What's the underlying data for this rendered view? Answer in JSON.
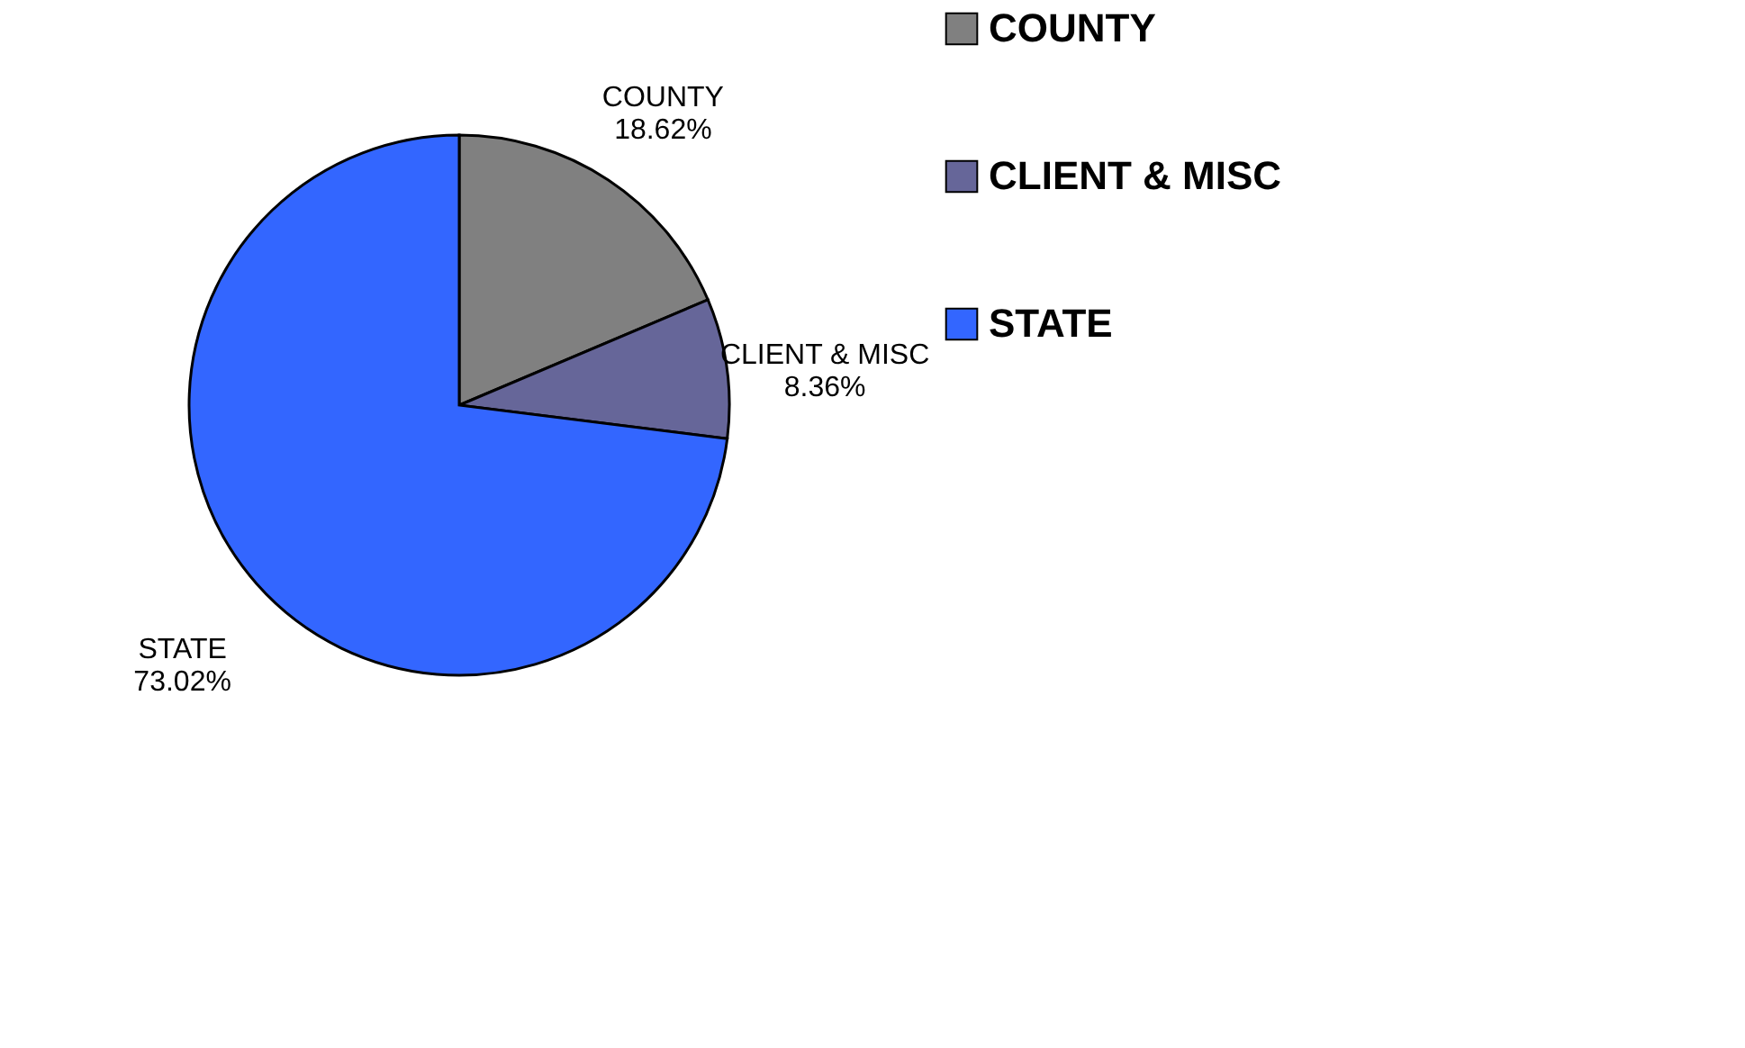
{
  "chart_data": {
    "type": "pie",
    "categories": [
      "COUNTY",
      "CLIENT & MISC",
      "STATE"
    ],
    "values": [
      18.62,
      8.36,
      73.02
    ],
    "colors": [
      "#808080",
      "#666699",
      "#3366ff"
    ],
    "value_labels": [
      "18.62%",
      "8.36%",
      "73.02%"
    ],
    "legend": "right"
  }
}
